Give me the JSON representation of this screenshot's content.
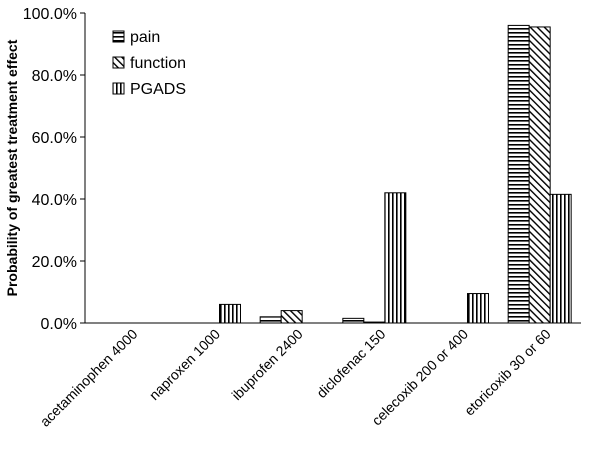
{
  "chart_data": {
    "type": "bar",
    "title": "",
    "xlabel": "",
    "ylabel": "Probability of greatest treatment effect",
    "ylim": [
      0,
      100
    ],
    "yticks": [
      "0.0%",
      "20.0%",
      "40.0%",
      "60.0%",
      "80.0%",
      "100.0%"
    ],
    "ytick_values": [
      0,
      20,
      40,
      60,
      80,
      100
    ],
    "grid": false,
    "legend_position": "top-left",
    "categories": [
      "acetaminophen 4000",
      "naproxen 1000",
      "ibuprofen 2400",
      "diclofenac 150",
      "celecoxib 200 or 400",
      "etoricoxib 30 or 60"
    ],
    "series": [
      {
        "name": "pain",
        "pattern": "horizontal-stripes",
        "values": [
          0,
          0,
          2,
          1.5,
          0,
          96
        ]
      },
      {
        "name": "function",
        "pattern": "diagonal-stripes",
        "values": [
          0,
          0,
          4,
          0.3,
          0,
          95.5
        ]
      },
      {
        "name": "PGADS",
        "pattern": "vertical-stripes",
        "values": [
          0,
          6,
          0,
          42,
          9.5,
          41.5
        ]
      }
    ]
  }
}
